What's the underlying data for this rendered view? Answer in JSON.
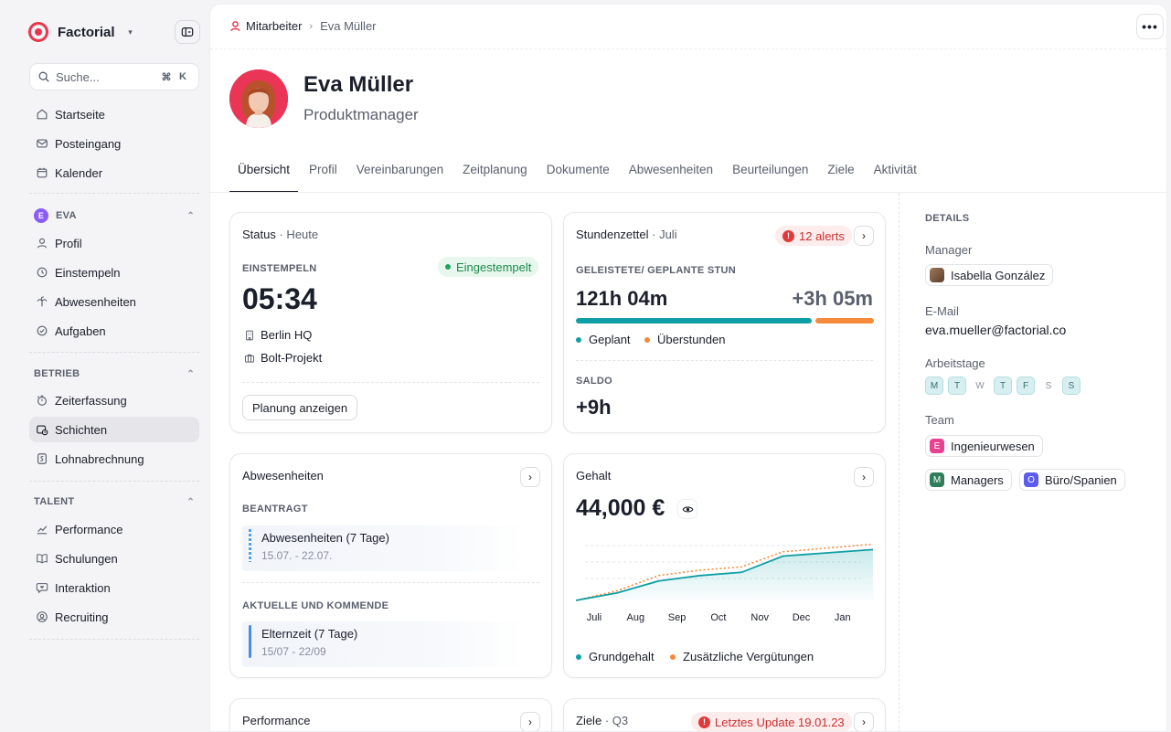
{
  "brand": {
    "name": "Factorial"
  },
  "search": {
    "placeholder": "Suche...",
    "key1": "⌘",
    "key2": "K"
  },
  "nav_main": [
    {
      "label": "Startseite"
    },
    {
      "label": "Posteingang"
    },
    {
      "label": "Kalender"
    }
  ],
  "section_eva": {
    "label": "EVA",
    "badge": "E"
  },
  "nav_eva": [
    {
      "label": "Profil"
    },
    {
      "label": "Einstempeln"
    },
    {
      "label": "Abwesenheiten"
    },
    {
      "label": "Aufgaben"
    }
  ],
  "section_betrieb": {
    "label": "BETRIEB"
  },
  "nav_betrieb": [
    {
      "label": "Zeiterfassung"
    },
    {
      "label": "Schichten"
    },
    {
      "label": "Lohnabrechnung"
    }
  ],
  "section_talent": {
    "label": "TALENT"
  },
  "nav_talent": [
    {
      "label": "Performance"
    },
    {
      "label": "Schulungen"
    },
    {
      "label": "Interaktion"
    },
    {
      "label": "Recruiting"
    }
  ],
  "breadcrumb": {
    "parent": "Mitarbeiter",
    "current": "Eva Müller"
  },
  "profile": {
    "name": "Eva Müller",
    "role": "Produktmanager"
  },
  "tabs": [
    "Übersicht",
    "Profil",
    "Vereinbarungen",
    "Zeitplanung",
    "Dokumente",
    "Abwesenheiten",
    "Beurteilungen",
    "Ziele",
    "Aktivität"
  ],
  "status_card": {
    "title": "Status",
    "sub": "· Heute",
    "caption": "EINSTEMPELN",
    "badge": "Eingestempelt",
    "time": "05:34",
    "location": "Berlin HQ",
    "project": "Bolt-Projekt",
    "button": "Planung anzeigen"
  },
  "timesheet_card": {
    "title": "Stundenzettel",
    "sub": "· Juli",
    "alerts": "12 alerts",
    "caption": "GELEISTETE/ GEPLANTE STUN",
    "worked": "121h 04m",
    "overtime": "+3h 05m",
    "planned_fraction": 0.79,
    "legend_planned": "Geplant",
    "legend_overtime": "Überstunden",
    "saldo_caption": "SALDO",
    "saldo": "+9h"
  },
  "absence_card": {
    "title": "Abwesenheiten",
    "requested_caption": "BEANTRAGT",
    "requested": {
      "title": "Abwesenheiten (7 Tage)",
      "dates": "15.07. - 22.07."
    },
    "current_caption": "AKTUELLE UND KOMMENDE",
    "current": {
      "title": "Elternzeit (7 Tage)",
      "dates": "15/07 - 22/09"
    }
  },
  "salary_card": {
    "title": "Gehalt",
    "amount": "44,000 €",
    "legend_base": "Grundgehalt",
    "legend_extra": "Zusätzliche Vergütungen"
  },
  "chart_data": {
    "type": "area",
    "categories": [
      "Juli",
      "Aug",
      "Sep",
      "Oct",
      "Nov",
      "Dec",
      "Jan"
    ],
    "series": [
      {
        "name": "Grundgehalt",
        "values": [
          0,
          14,
          36,
          46,
          52,
          82,
          94
        ]
      },
      {
        "name": "Zusätzliche Vergütungen",
        "values": [
          0,
          18,
          46,
          56,
          62,
          90,
          104
        ]
      }
    ],
    "ylim": [
      0,
      115
    ],
    "colors": {
      "Grundgehalt": "#0f9ea5",
      "Zusätzliche Vergütungen": "#f58a3c"
    }
  },
  "performance_card": {
    "title": "Performance"
  },
  "goals_card": {
    "title": "Ziele",
    "sub": "· Q3",
    "badge": "Letztes Update 19.01.23"
  },
  "details": {
    "caption": "DETAILS",
    "manager_label": "Manager",
    "manager": "Isabella González",
    "email_label": "E-Mail",
    "email": "eva.mueller@factorial.co",
    "workdays_label": "Arbeitstage",
    "workdays": [
      {
        "d": "M",
        "on": true
      },
      {
        "d": "T",
        "on": true
      },
      {
        "d": "W",
        "on": false
      },
      {
        "d": "T",
        "on": true
      },
      {
        "d": "F",
        "on": true
      },
      {
        "d": "S",
        "on": false
      },
      {
        "d": "S",
        "on": true
      }
    ],
    "team_label": "Team",
    "teams": [
      {
        "label": "Ingenieurwesen",
        "letter": "E",
        "color": "#e84393"
      },
      {
        "label": "Managers",
        "letter": "M",
        "color": "#2e7d5b"
      },
      {
        "label": "Büro/Spanien",
        "letter": "O",
        "color": "#5b5bf0"
      }
    ]
  }
}
